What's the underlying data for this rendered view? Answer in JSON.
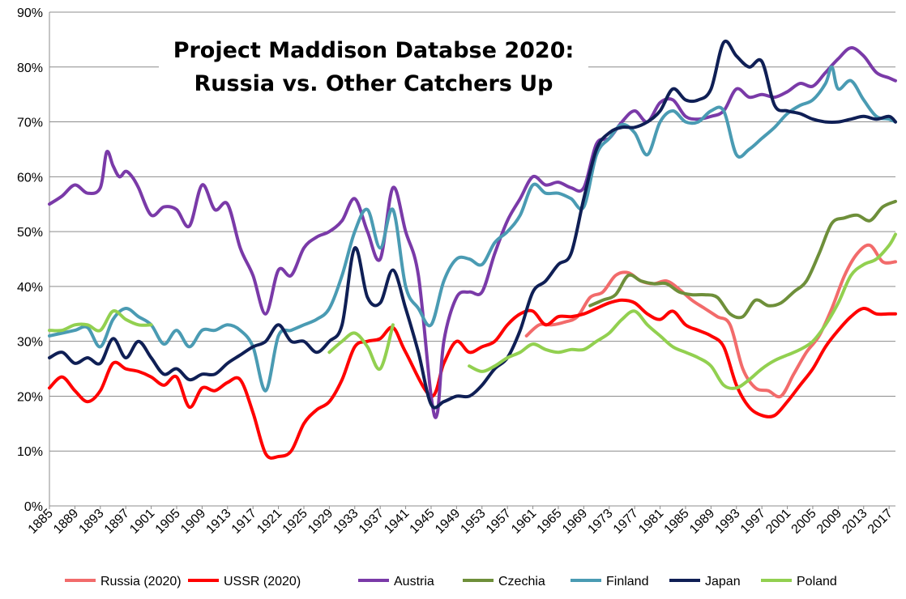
{
  "chart_data": {
    "type": "line",
    "title_lines": [
      "Project Maddison Databse 2020:",
      "Russia vs. Other Catchers Up"
    ],
    "xlabel": "",
    "ylabel": "",
    "ylim": [
      0,
      0.9
    ],
    "xlim": [
      1885,
      2018
    ],
    "grid": true,
    "legend_position": "bottom",
    "y_ticks": [
      "0%",
      "10%",
      "20%",
      "30%",
      "40%",
      "50%",
      "60%",
      "70%",
      "80%",
      "90%"
    ],
    "x_ticks": [
      "1885",
      "1889",
      "1893",
      "1897",
      "1901",
      "1905",
      "1909",
      "1913",
      "1917",
      "1921",
      "1925",
      "1929",
      "1933",
      "1937",
      "1941",
      "1945",
      "1949",
      "1953",
      "1957",
      "1961",
      "1965",
      "1969",
      "1973",
      "1977",
      "1981",
      "1985",
      "1989",
      "1993",
      "1997",
      "2001",
      "2005",
      "2009",
      "2013",
      "2017"
    ],
    "series": [
      {
        "name": "Russia (2020)",
        "color": "#f26b6b",
        "x": [
          1960,
          1962,
          1964,
          1966,
          1968,
          1970,
          1972,
          1974,
          1976,
          1978,
          1980,
          1982,
          1984,
          1986,
          1988,
          1990,
          1992,
          1994,
          1996,
          1998,
          2000,
          2002,
          2004,
          2006,
          2008,
          2010,
          2012,
          2014,
          2016,
          2018
        ],
        "y": [
          0.31,
          0.33,
          0.33,
          0.335,
          0.345,
          0.38,
          0.39,
          0.42,
          0.425,
          0.41,
          0.405,
          0.41,
          0.395,
          0.375,
          0.36,
          0.345,
          0.33,
          0.25,
          0.215,
          0.21,
          0.2,
          0.24,
          0.28,
          0.31,
          0.36,
          0.42,
          0.46,
          0.475,
          0.445,
          0.445
        ]
      },
      {
        "name": "USSR (2020)",
        "color": "#ff0000",
        "x": [
          1885,
          1887,
          1889,
          1891,
          1893,
          1895,
          1897,
          1899,
          1901,
          1903,
          1905,
          1907,
          1909,
          1911,
          1913,
          1915,
          1917,
          1919,
          1921,
          1923,
          1925,
          1927,
          1929,
          1931,
          1933,
          1935,
          1937,
          1939,
          1941,
          1945,
          1947,
          1949,
          1951,
          1953,
          1955,
          1957,
          1959,
          1961,
          1963,
          1965,
          1967,
          1969,
          1971,
          1973,
          1975,
          1977,
          1979,
          1981,
          1983,
          1985,
          1987,
          1989,
          1991,
          1993,
          1995,
          1997,
          1999,
          2001,
          2003,
          2005,
          2007,
          2009,
          2011,
          2013,
          2015,
          2017,
          2018
        ],
        "y": [
          0.215,
          0.235,
          0.21,
          0.19,
          0.21,
          0.26,
          0.25,
          0.245,
          0.235,
          0.22,
          0.235,
          0.18,
          0.215,
          0.21,
          0.225,
          0.23,
          0.17,
          0.095,
          0.09,
          0.1,
          0.15,
          0.175,
          0.19,
          0.23,
          0.29,
          0.3,
          0.305,
          0.325,
          0.28,
          0.2,
          0.26,
          0.3,
          0.28,
          0.29,
          0.3,
          0.33,
          0.35,
          0.355,
          0.33,
          0.345,
          0.345,
          0.35,
          0.36,
          0.37,
          0.375,
          0.37,
          0.35,
          0.34,
          0.355,
          0.33,
          0.32,
          0.31,
          0.29,
          0.22,
          0.18,
          0.165,
          0.165,
          0.19,
          0.22,
          0.25,
          0.29,
          0.32,
          0.345,
          0.36,
          0.35,
          0.35,
          0.35
        ]
      },
      {
        "name": "Austria",
        "color": "#7a3aa8",
        "x": [
          1885,
          1887,
          1889,
          1891,
          1893,
          1894,
          1895,
          1896,
          1897,
          1898,
          1899,
          1901,
          1903,
          1905,
          1907,
          1909,
          1911,
          1913,
          1915,
          1917,
          1919,
          1921,
          1923,
          1925,
          1927,
          1929,
          1931,
          1933,
          1935,
          1937,
          1939,
          1941,
          1943,
          1945,
          1946,
          1947,
          1949,
          1951,
          1953,
          1955,
          1957,
          1959,
          1961,
          1963,
          1965,
          1967,
          1969,
          1971,
          1973,
          1975,
          1977,
          1979,
          1981,
          1983,
          1985,
          1987,
          1989,
          1991,
          1993,
          1995,
          1997,
          1999,
          2001,
          2003,
          2005,
          2007,
          2009,
          2011,
          2013,
          2015,
          2017,
          2018
        ],
        "y": [
          0.55,
          0.565,
          0.585,
          0.57,
          0.58,
          0.645,
          0.62,
          0.6,
          0.61,
          0.6,
          0.58,
          0.53,
          0.545,
          0.54,
          0.51,
          0.585,
          0.54,
          0.55,
          0.47,
          0.42,
          0.35,
          0.43,
          0.42,
          0.47,
          0.49,
          0.5,
          0.52,
          0.56,
          0.5,
          0.45,
          0.58,
          0.5,
          0.42,
          0.2,
          0.17,
          0.3,
          0.38,
          0.39,
          0.39,
          0.46,
          0.52,
          0.56,
          0.6,
          0.585,
          0.59,
          0.58,
          0.58,
          0.66,
          0.67,
          0.7,
          0.72,
          0.7,
          0.735,
          0.74,
          0.71,
          0.705,
          0.71,
          0.72,
          0.76,
          0.745,
          0.75,
          0.745,
          0.755,
          0.77,
          0.765,
          0.79,
          0.815,
          0.835,
          0.82,
          0.79,
          0.78,
          0.775
        ]
      },
      {
        "name": "Czechia",
        "color": "#6e8f3a",
        "x": [
          1970,
          1972,
          1974,
          1976,
          1978,
          1980,
          1982,
          1984,
          1986,
          1988,
          1990,
          1992,
          1994,
          1996,
          1998,
          2000,
          2002,
          2004,
          2006,
          2008,
          2010,
          2012,
          2014,
          2016,
          2018
        ],
        "y": [
          0.365,
          0.375,
          0.385,
          0.42,
          0.41,
          0.405,
          0.405,
          0.39,
          0.385,
          0.385,
          0.38,
          0.35,
          0.345,
          0.375,
          0.365,
          0.37,
          0.39,
          0.41,
          0.46,
          0.515,
          0.525,
          0.53,
          0.52,
          0.545,
          0.555
        ]
      },
      {
        "name": "Finland",
        "color": "#4a9bb3",
        "x": [
          1885,
          1887,
          1889,
          1891,
          1893,
          1895,
          1897,
          1899,
          1901,
          1903,
          1905,
          1907,
          1909,
          1911,
          1913,
          1915,
          1917,
          1919,
          1921,
          1923,
          1925,
          1927,
          1929,
          1931,
          1933,
          1935,
          1937,
          1939,
          1941,
          1943,
          1945,
          1947,
          1949,
          1951,
          1953,
          1955,
          1957,
          1959,
          1961,
          1963,
          1965,
          1967,
          1969,
          1971,
          1973,
          1975,
          1977,
          1979,
          1981,
          1983,
          1985,
          1987,
          1989,
          1991,
          1993,
          1995,
          1997,
          1999,
          2001,
          2003,
          2005,
          2007,
          2008,
          2009,
          2011,
          2013,
          2015,
          2017,
          2018
        ],
        "y": [
          0.31,
          0.315,
          0.32,
          0.325,
          0.29,
          0.34,
          0.36,
          0.345,
          0.33,
          0.295,
          0.32,
          0.29,
          0.32,
          0.32,
          0.33,
          0.32,
          0.29,
          0.21,
          0.31,
          0.32,
          0.33,
          0.34,
          0.36,
          0.42,
          0.5,
          0.54,
          0.47,
          0.54,
          0.4,
          0.36,
          0.33,
          0.41,
          0.45,
          0.45,
          0.44,
          0.48,
          0.5,
          0.53,
          0.585,
          0.57,
          0.57,
          0.56,
          0.545,
          0.64,
          0.67,
          0.695,
          0.68,
          0.64,
          0.7,
          0.72,
          0.7,
          0.7,
          0.72,
          0.72,
          0.64,
          0.65,
          0.67,
          0.69,
          0.715,
          0.73,
          0.74,
          0.77,
          0.8,
          0.76,
          0.775,
          0.74,
          0.71,
          0.705,
          0.7
        ]
      },
      {
        "name": "Japan",
        "color": "#0f1f55",
        "x": [
          1885,
          1887,
          1889,
          1891,
          1893,
          1895,
          1897,
          1899,
          1901,
          1903,
          1905,
          1907,
          1909,
          1911,
          1913,
          1915,
          1917,
          1919,
          1921,
          1923,
          1925,
          1927,
          1929,
          1931,
          1933,
          1935,
          1937,
          1939,
          1941,
          1943,
          1945,
          1947,
          1949,
          1951,
          1953,
          1955,
          1957,
          1959,
          1961,
          1963,
          1965,
          1967,
          1969,
          1971,
          1973,
          1975,
          1977,
          1979,
          1981,
          1983,
          1985,
          1987,
          1989,
          1991,
          1993,
          1995,
          1997,
          1999,
          2001,
          2003,
          2005,
          2007,
          2009,
          2011,
          2013,
          2015,
          2017,
          2018
        ],
        "y": [
          0.27,
          0.28,
          0.26,
          0.27,
          0.26,
          0.305,
          0.27,
          0.3,
          0.27,
          0.24,
          0.25,
          0.23,
          0.24,
          0.24,
          0.26,
          0.275,
          0.29,
          0.3,
          0.33,
          0.3,
          0.3,
          0.28,
          0.3,
          0.33,
          0.47,
          0.38,
          0.37,
          0.43,
          0.36,
          0.28,
          0.185,
          0.19,
          0.2,
          0.2,
          0.22,
          0.25,
          0.27,
          0.32,
          0.39,
          0.41,
          0.44,
          0.46,
          0.56,
          0.65,
          0.68,
          0.69,
          0.69,
          0.7,
          0.72,
          0.76,
          0.74,
          0.74,
          0.76,
          0.845,
          0.82,
          0.8,
          0.81,
          0.73,
          0.72,
          0.715,
          0.705,
          0.7,
          0.7,
          0.705,
          0.71,
          0.705,
          0.71,
          0.7
        ]
      },
      {
        "name": "Poland",
        "color": "#92d050",
        "x": [
          1885,
          1887,
          1889,
          1891,
          1893,
          1895,
          1897,
          1899,
          1901,
          1929,
          1931,
          1933,
          1935,
          1937,
          1939,
          1951,
          1953,
          1955,
          1957,
          1959,
          1961,
          1963,
          1965,
          1967,
          1969,
          1971,
          1973,
          1975,
          1977,
          1979,
          1981,
          1983,
          1985,
          1987,
          1989,
          1991,
          1993,
          1995,
          1997,
          1999,
          2001,
          2003,
          2005,
          2007,
          2009,
          2011,
          2013,
          2015,
          2017,
          2018
        ],
        "y": [
          0.32,
          0.32,
          0.33,
          0.33,
          0.32,
          0.355,
          0.34,
          0.33,
          0.33,
          0.28,
          0.3,
          0.315,
          0.29,
          0.25,
          0.33,
          0.255,
          0.245,
          0.255,
          0.27,
          0.28,
          0.295,
          0.285,
          0.28,
          0.285,
          0.285,
          0.3,
          0.315,
          0.34,
          0.355,
          0.33,
          0.31,
          0.29,
          0.28,
          0.27,
          0.255,
          0.22,
          0.215,
          0.23,
          0.25,
          0.265,
          0.275,
          0.285,
          0.3,
          0.33,
          0.37,
          0.42,
          0.44,
          0.45,
          0.475,
          0.495
        ]
      }
    ]
  }
}
